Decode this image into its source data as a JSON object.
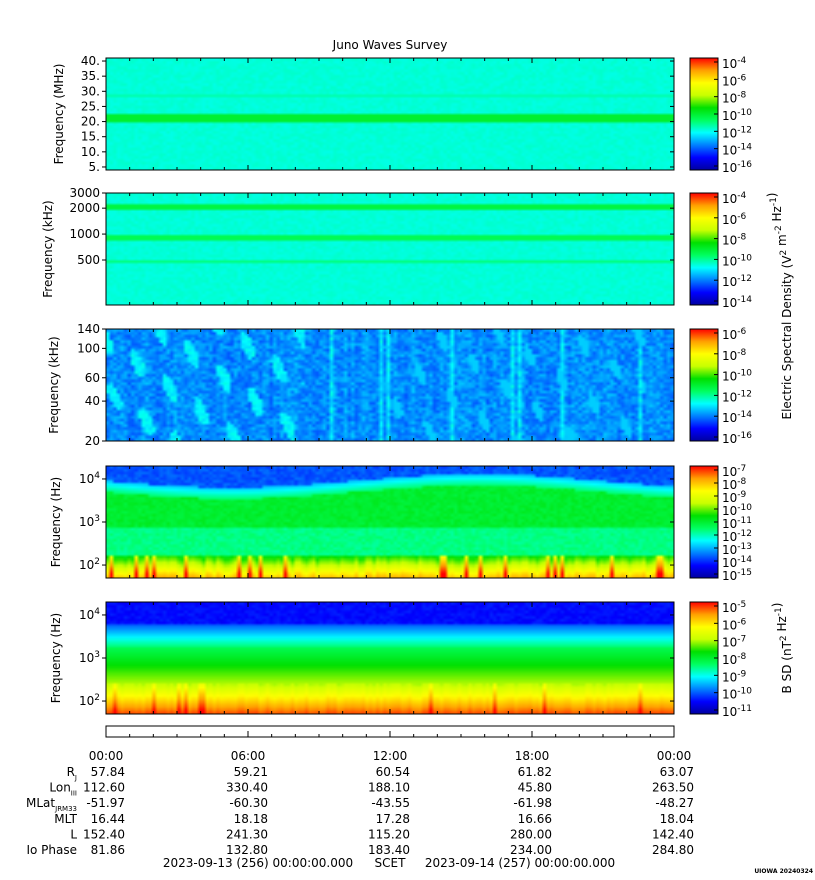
{
  "chart_data": {
    "type": "heatmap",
    "title": "Juno Waves Survey",
    "colorscale": [
      "#0000a0",
      "#0000ff",
      "#0080ff",
      "#00ffff",
      "#00ff60",
      "#00e000",
      "#c8ff00",
      "#ffff00",
      "#ffa000",
      "#ff0000"
    ],
    "x_tick_labels": [
      "00:00",
      "06:00",
      "12:00",
      "18:00",
      "00:00"
    ],
    "x_range_hours": [
      0,
      24
    ],
    "panels": [
      {
        "id": "hfwbr",
        "ylabel": "Frequency (MHz)",
        "yscale": "linear",
        "ylim": [
          4,
          41
        ],
        "yticks": [
          {
            "v": 5,
            "label": "5."
          },
          {
            "v": 10,
            "label": "10."
          },
          {
            "v": 15,
            "label": "15."
          },
          {
            "v": 20,
            "label": "20."
          },
          {
            "v": 25,
            "label": "25."
          },
          {
            "v": 30,
            "label": "30."
          },
          {
            "v": 35,
            "label": "35."
          },
          {
            "v": 40,
            "label": "40."
          }
        ],
        "colorbar_ticks": [
          "10^-4",
          "10^-6",
          "10^-8",
          "10^-10",
          "10^-12",
          "10^-14",
          "10^-16"
        ],
        "pattern": "flat_mhz"
      },
      {
        "id": "hfwbr_low",
        "ylabel": "Frequency (kHz)",
        "yscale": "log",
        "ylim": [
          150,
          3000
        ],
        "yticks": [
          {
            "v": 3000,
            "label": "3000"
          },
          {
            "v": 2000,
            "label": "2000"
          },
          {
            "v": 1000,
            "label": "1000"
          },
          {
            "v": 500,
            "label": "500"
          }
        ],
        "colorbar_ticks": [
          "10^-4",
          "10^-6",
          "10^-8",
          "10^-10",
          "10^-12",
          "10^-14"
        ],
        "pattern": "flat_khz"
      },
      {
        "id": "lfrh",
        "ylabel": "Frequency (kHz)",
        "yscale": "log",
        "ylim": [
          20,
          140
        ],
        "yticks": [
          {
            "v": 140,
            "label": "140"
          },
          {
            "v": 100,
            "label": "100"
          },
          {
            "v": 60,
            "label": "60"
          },
          {
            "v": 40,
            "label": "40"
          },
          {
            "v": 20,
            "label": "20"
          }
        ],
        "colorbar_ticks": [
          "10^-6",
          "10^-8",
          "10^-10",
          "10^-12",
          "10^-14",
          "10^-16"
        ],
        "pattern": "lfr"
      },
      {
        "id": "lfrl",
        "ylabel": "Frequency (Hz)",
        "yscale": "log",
        "ylim": [
          50,
          20000
        ],
        "yticks": [
          {
            "v": 10000,
            "label": "10^4"
          },
          {
            "v": 1000,
            "label": "10^3"
          },
          {
            "v": 100,
            "label": "10^2"
          }
        ],
        "colorbar_ticks": [
          "10^-7",
          "10^-8",
          "10^-9",
          "10^-10",
          "10^-11",
          "10^-12",
          "10^-13",
          "10^-14",
          "10^-15"
        ],
        "pattern": "efield_low"
      },
      {
        "id": "bfield",
        "ylabel": "Frequency (Hz)",
        "yscale": "log",
        "ylim": [
          50,
          20000
        ],
        "yticks": [
          {
            "v": 10000,
            "label": "10^4"
          },
          {
            "v": 1000,
            "label": "10^3"
          },
          {
            "v": 100,
            "label": "10^2"
          }
        ],
        "colorbar_ticks": [
          "10^-5",
          "10^-6",
          "10^-7",
          "10^-8",
          "10^-9",
          "10^-10",
          "10^-11"
        ],
        "pattern": "bfield"
      }
    ],
    "colorbar_labels": {
      "electric": "Electric Spectral Density (V^2 m^-2 Hz^-1)",
      "magnetic": "B SD (nT^2 Hz^-1)"
    },
    "ephemeris": [
      {
        "name": "R",
        "sub": "J",
        "values": [
          "57.84",
          "59.21",
          "60.54",
          "61.82",
          "63.07"
        ]
      },
      {
        "name": "Lon",
        "sub": "III",
        "values": [
          "112.60",
          "330.40",
          "188.10",
          "45.80",
          "263.50"
        ]
      },
      {
        "name": "MLat",
        "sub": "JRM33",
        "values": [
          "-51.97",
          "-60.30",
          "-43.55",
          "-61.98",
          "-48.27"
        ]
      },
      {
        "name": "MLT",
        "sub": "",
        "values": [
          "16.44",
          "18.18",
          "17.28",
          "16.66",
          "18.04"
        ]
      },
      {
        "name": "L",
        "sub": "",
        "values": [
          "152.40",
          "241.30",
          "115.20",
          "280.00",
          "142.40"
        ]
      },
      {
        "name": "Io Phase",
        "sub": "",
        "values": [
          "81.86",
          "132.80",
          "183.40",
          "234.00",
          "284.80"
        ]
      }
    ],
    "time_start": "2023-09-13 (256) 00:00:00.000",
    "time_label": "SCET",
    "time_end": "2023-09-14 (257) 00:00:00.000",
    "credit": "UIOWA 20240324"
  }
}
